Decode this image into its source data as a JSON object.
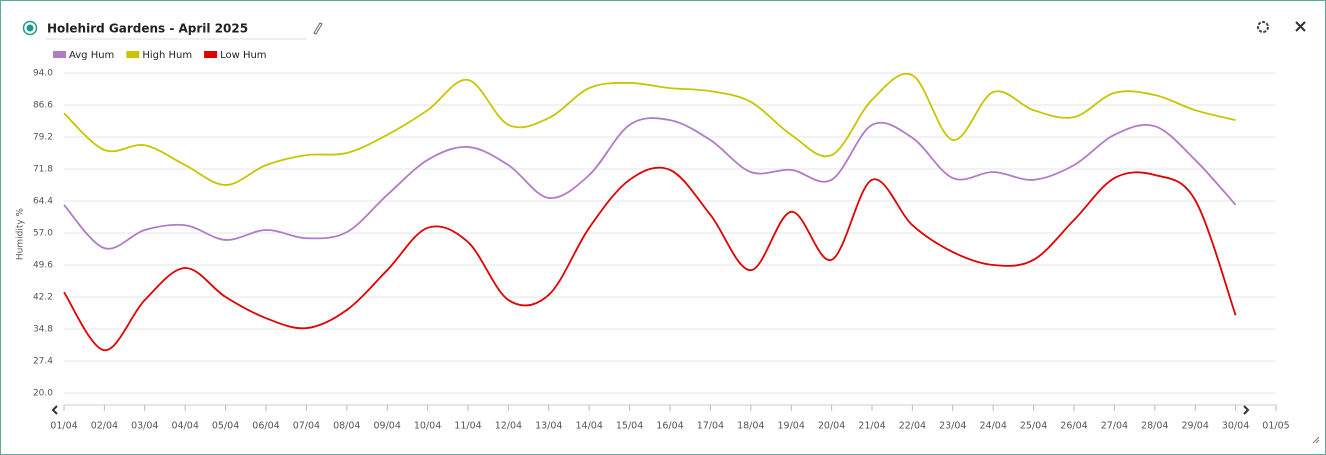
{
  "chart_data": {
    "type": "line",
    "title": "Holehird Gardens - April 2025",
    "y_label": "Humidity %",
    "categories": [
      "01/04",
      "02/04",
      "03/04",
      "04/04",
      "05/04",
      "06/04",
      "07/04",
      "08/04",
      "09/04",
      "10/04",
      "11/04",
      "12/04",
      "13/04",
      "14/04",
      "15/04",
      "16/04",
      "17/04",
      "18/04",
      "19/04",
      "20/04",
      "21/04",
      "22/04",
      "23/04",
      "24/04",
      "25/04",
      "26/04",
      "27/04",
      "28/04",
      "29/04",
      "30/04",
      "01/05"
    ],
    "series": [
      {
        "name": "Avg Hum",
        "color": "#b07cc6",
        "values": [
          63.5,
          53.5,
          57.7,
          58.8,
          55.4,
          57.7,
          55.8,
          57.2,
          65.8,
          73.9,
          76.9,
          72.7,
          65.1,
          70.4,
          82.0,
          83.1,
          78.5,
          71.1,
          71.6,
          69.3,
          82.0,
          79.0,
          69.7,
          71.1,
          69.3,
          72.7,
          79.7,
          81.7,
          73.9,
          63.5,
          null
        ]
      },
      {
        "name": "High Hum",
        "color": "#c8c400",
        "values": [
          84.7,
          76.2,
          77.3,
          72.7,
          68.1,
          72.7,
          75.0,
          75.5,
          79.7,
          85.4,
          92.4,
          82.0,
          83.6,
          90.5,
          91.7,
          90.5,
          89.8,
          87.3,
          79.7,
          75.0,
          87.8,
          93.5,
          78.5,
          89.6,
          85.4,
          83.8,
          89.4,
          88.9,
          85.4,
          83.1,
          null
        ]
      },
      {
        "name": "Low Hum",
        "color": "#e00000",
        "values": [
          43.3,
          29.9,
          41.5,
          48.9,
          42.2,
          37.3,
          35.0,
          39.2,
          48.4,
          58.2,
          54.9,
          41.5,
          42.7,
          58.2,
          69.3,
          71.6,
          61.2,
          48.4,
          61.9,
          50.8,
          69.3,
          58.8,
          52.6,
          49.6,
          50.8,
          60.0,
          69.7,
          70.4,
          64.6,
          38.0,
          null
        ]
      }
    ],
    "ylim": [
      20.0,
      94.0
    ],
    "yticks": [
      {
        "value": 20,
        "label": "20.0"
      },
      27.4,
      34.8,
      42.2,
      49.6,
      {
        "value": 57,
        "label": "57.0"
      },
      64.4,
      71.8,
      79.2,
      86.6,
      {
        "value": 94,
        "label": "94.0"
      }
    ],
    "grid": true
  }
}
